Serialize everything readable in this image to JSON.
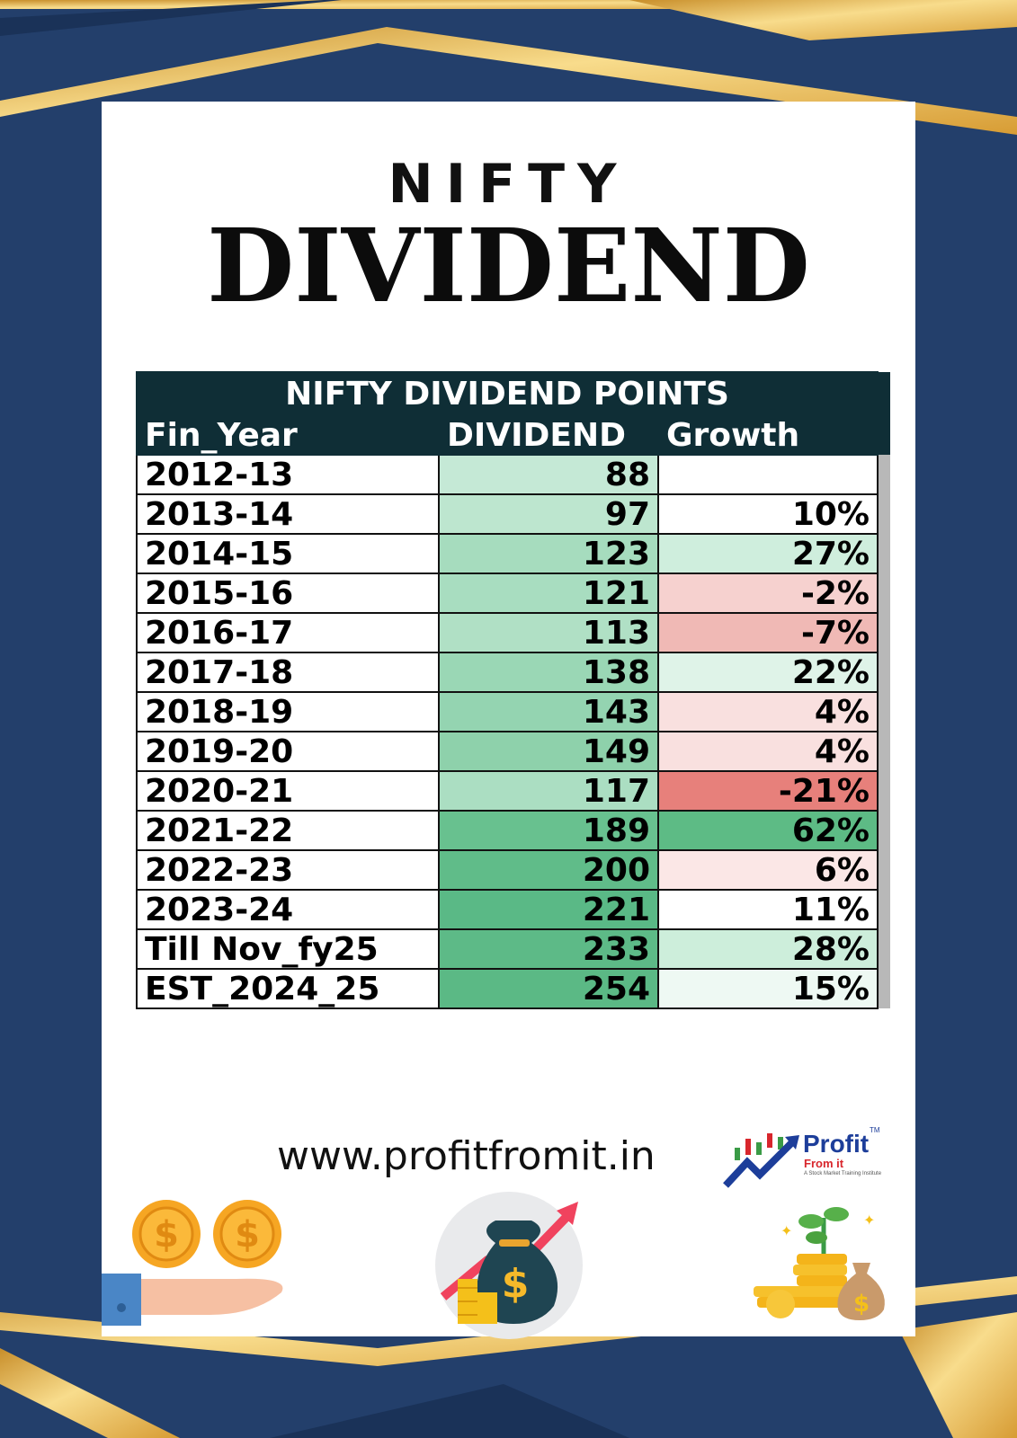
{
  "heading": {
    "kicker": "NIFTY",
    "title": "DIVIDEND"
  },
  "table": {
    "caption": "NIFTY DIVIDEND POINTS",
    "columns": [
      "Fin_Year",
      "DIVIDEND",
      "Growth"
    ],
    "rows": [
      {
        "year": "2012-13",
        "dividend": "88",
        "growth": "",
        "div_color": "#c5e9d6",
        "growth_color": "#ffffff"
      },
      {
        "year": "2013-14",
        "dividend": "97",
        "growth": "10%",
        "div_color": "#bde6cf",
        "growth_color": "#ffffff"
      },
      {
        "year": "2014-15",
        "dividend": "123",
        "growth": "27%",
        "div_color": "#a6dcbe",
        "growth_color": "#cfeedd"
      },
      {
        "year": "2015-16",
        "dividend": "121",
        "growth": "-2%",
        "div_color": "#a8ddc0",
        "growth_color": "#f6d1cf"
      },
      {
        "year": "2016-17",
        "dividend": "113",
        "growth": "-7%",
        "div_color": "#b0e0c5",
        "growth_color": "#f0b9b5"
      },
      {
        "year": "2017-18",
        "dividend": "138",
        "growth": "22%",
        "div_color": "#9ad7b5",
        "growth_color": "#dff3e8"
      },
      {
        "year": "2018-19",
        "dividend": "143",
        "growth": "4%",
        "div_color": "#94d4b1",
        "growth_color": "#f9e0df"
      },
      {
        "year": "2019-20",
        "dividend": "149",
        "growth": "4%",
        "div_color": "#8ed1ab",
        "growth_color": "#f9e0df"
      },
      {
        "year": "2020-21",
        "dividend": "117",
        "growth": "-21%",
        "div_color": "#abdec2",
        "growth_color": "#e7807b"
      },
      {
        "year": "2021-22",
        "dividend": "189",
        "growth": "62%",
        "div_color": "#68c18f",
        "growth_color": "#5dbb85"
      },
      {
        "year": "2022-23",
        "dividend": "200",
        "growth": "6%",
        "div_color": "#60bc89",
        "growth_color": "#fbe7e6"
      },
      {
        "year": "2023-24",
        "dividend": "221",
        "growth": "11%",
        "div_color": "#5ab986",
        "growth_color": "#ffffff"
      },
      {
        "year": "Till Nov_fy25",
        "dividend": "233",
        "growth": "28%",
        "div_color": "#5dba87",
        "growth_color": "#cdeedb"
      },
      {
        "year": "EST_2024_25",
        "dividend": "254",
        "growth": "15%",
        "div_color": "#5bb985",
        "growth_color": "#eef9f3"
      }
    ]
  },
  "footer": {
    "website": "www.profitfromit.in",
    "logo": {
      "name": "Profit",
      "subtitle": "From it",
      "tagline": "A Stock Market Training Institute",
      "trademark": "TM"
    },
    "illustrations": [
      "coins-in-hand-icon",
      "money-bag-growth-icon",
      "coin-stack-plant-icon"
    ]
  },
  "colors": {
    "background": "#233f6b",
    "gold": "#e9b64a",
    "table_header": "#0f2e36"
  }
}
